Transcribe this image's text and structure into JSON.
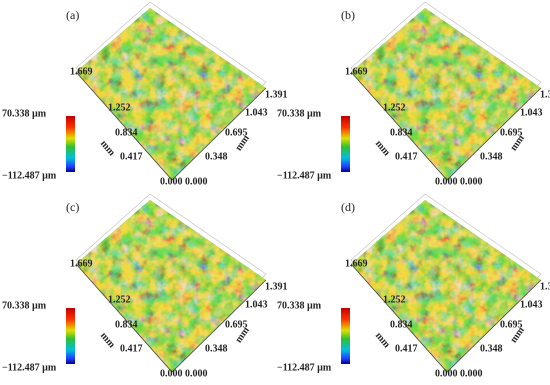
{
  "panels": [
    {
      "label": "(a)",
      "scale_max": "70.338 µm",
      "scale_min": "−112.487 µm",
      "axis_left": {
        "ticks": [
          "1.669",
          "1.252",
          "0.834",
          "0.417",
          "0.000"
        ],
        "unit": "mm"
      },
      "axis_right": {
        "ticks": [
          "0.000",
          "0.348",
          "0.695",
          "1.043",
          "1.391"
        ],
        "unit": "mm"
      }
    },
    {
      "label": "(b)",
      "scale_max": "70.338 µm",
      "scale_min": "−112.487 µm",
      "axis_left": {
        "ticks": [
          "1.669",
          "1.252",
          "0.834",
          "0.417",
          "0.000"
        ],
        "unit": "mm"
      },
      "axis_right": {
        "ticks": [
          "0.000",
          "0.348",
          "0.695",
          "1.043",
          "1.391"
        ],
        "unit": "mm"
      }
    },
    {
      "label": "(c)",
      "scale_max": "70.338 µm",
      "scale_min": "−112.487 µm",
      "axis_left": {
        "ticks": [
          "1.669",
          "1.252",
          "0.834",
          "0.417",
          "0.000"
        ],
        "unit": "mm"
      },
      "axis_right": {
        "ticks": [
          "0.000",
          "0.348",
          "0.695",
          "1.043",
          "1.391"
        ],
        "unit": "mm"
      }
    },
    {
      "label": "(d)",
      "scale_max": "70.338 µm",
      "scale_min": "−112.487 µm",
      "axis_left": {
        "ticks": [
          "1.669",
          "1.252",
          "0.834",
          "0.417",
          "0.000"
        ],
        "unit": "mm"
      },
      "axis_right": {
        "ticks": [
          "0.000",
          "0.348",
          "0.695",
          "1.043",
          "1.391"
        ],
        "unit": "mm"
      }
    }
  ]
}
